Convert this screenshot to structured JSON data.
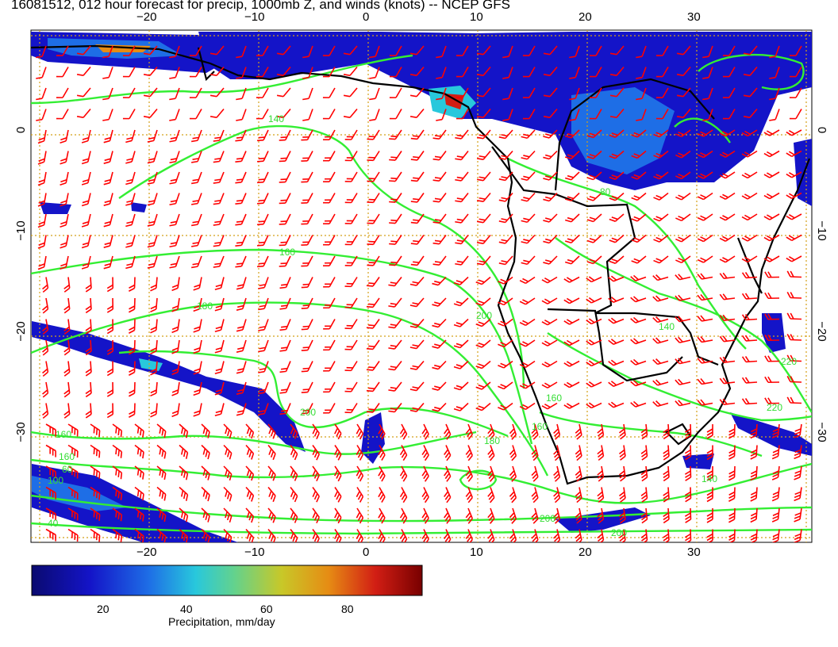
{
  "title": "16081512, 012 hour forecast for precip, 1000mb Z, and winds (knots) -- NCEP GFS",
  "map": {
    "lon_ticks": [
      "−20",
      "−10",
      "0",
      "10",
      "20",
      "30"
    ],
    "lat_ticks": [
      "0",
      "−10",
      "−20",
      "−30"
    ],
    "contour_labels": [
      "140",
      "160",
      "180",
      "160",
      "180",
      "160",
      "200",
      "220",
      "140",
      "220",
      "200",
      "200",
      "200",
      "160",
      "160",
      "140",
      "80",
      "40",
      "60",
      "100"
    ],
    "colors": {
      "wind_barbs": "#ff0000",
      "height_contours": "#33ee33",
      "coastlines": "#000000",
      "grid": "#d4a017"
    }
  },
  "colorbar": {
    "ticks": [
      "20",
      "40",
      "60",
      "80"
    ],
    "label": "Precipitation, mm/day",
    "colors": [
      "#0a0a70",
      "#1414c8",
      "#1e6ee6",
      "#28c8dc",
      "#64d28c",
      "#c8c828",
      "#e68c14",
      "#d21e14",
      "#780000"
    ]
  }
}
